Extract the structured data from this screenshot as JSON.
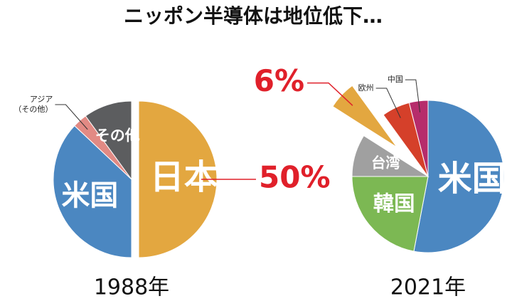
{
  "title": "ニッポン半導体は地位低下…",
  "chart_data": [
    {
      "type": "pie",
      "title": "1988年",
      "categories": [
        "日本",
        "米国",
        "アジア（その他）",
        "その他"
      ],
      "values": [
        50,
        37,
        3,
        10
      ],
      "value_labels": [
        "50%",
        null,
        null,
        null
      ],
      "colors": [
        "#e3a740",
        "#4b87c1",
        "#e28a84",
        "#5c5d5f"
      ],
      "explode": [
        0
      ]
    },
    {
      "type": "pie",
      "title": "2021年",
      "categories": [
        "米国",
        "韓国",
        "台湾",
        null,
        "欧州",
        "中国"
      ],
      "values": [
        53,
        22,
        9,
        6,
        6,
        4
      ],
      "value_labels": [
        null,
        null,
        null,
        "6%",
        null,
        null
      ],
      "colors": [
        "#4b87c1",
        "#7cb853",
        "#a0a0a0",
        "#e3a740",
        "#d5402a",
        "#b62c6b"
      ],
      "explode": [
        3
      ]
    }
  ]
}
